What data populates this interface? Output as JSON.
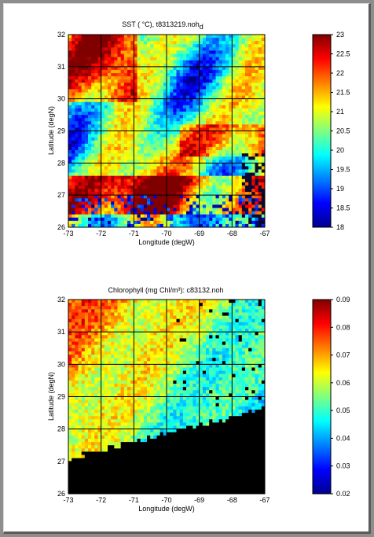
{
  "chart_data": [
    {
      "type": "heatmap",
      "title": "SST ( °C), t8313219.noh",
      "title_subscript": "d",
      "xlabel": "Longitude (degW)",
      "ylabel": "Latitude (degN)",
      "xlim": [
        -73,
        -67
      ],
      "ylim": [
        26,
        32
      ],
      "xticks": [
        "-73",
        "-72",
        "-71",
        "-70",
        "-69",
        "-68",
        "-67"
      ],
      "yticks": [
        "26",
        "27",
        "28",
        "29",
        "30",
        "31",
        "32"
      ],
      "grid": true,
      "colorbar": {
        "range": [
          18,
          23
        ],
        "ticks": [
          "18",
          "18.5",
          "19",
          "19.5",
          "20",
          "20.5",
          "21",
          "21.5",
          "22",
          "22.5",
          "23"
        ]
      },
      "colormap": "jet"
    },
    {
      "type": "heatmap",
      "title": "Chlorophyll (mg Chl/m³): c83132.noh",
      "xlabel": "Longitude (degW)",
      "ylabel": "Latitude (degN)",
      "xlim": [
        -73,
        -67
      ],
      "ylim": [
        26,
        32
      ],
      "xticks": [
        "-73",
        "-72",
        "-71",
        "-70",
        "-69",
        "-68",
        "-67"
      ],
      "yticks": [
        "26",
        "27",
        "28",
        "29",
        "30",
        "31",
        "32"
      ],
      "grid": true,
      "colorbar": {
        "range": [
          0.02,
          0.09
        ],
        "ticks": [
          "0.02",
          "0.03",
          "0.04",
          "0.05",
          "0.06",
          "0.07",
          "0.08",
          "0.09"
        ]
      },
      "colormap": "jet",
      "masked_region": "land/no-data in lower-right (black)"
    }
  ]
}
